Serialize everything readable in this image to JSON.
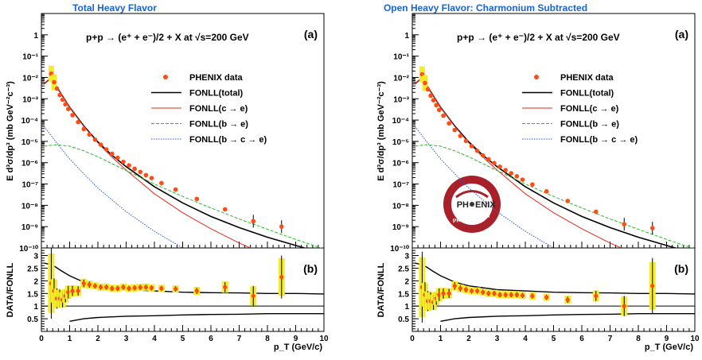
{
  "chart_data": [
    {
      "type": "scatter",
      "title": "Total Heavy Flavor",
      "process": "p+p → (e⁺ + e⁻)/2 + X at √s=200 GeV",
      "top_label": "(a)",
      "bottom_label": "(b)",
      "ylabel_top": "E d³σ/dp³ (mb GeV⁻²c⁻³)",
      "ylabel_bottom": "DATA/FONLL",
      "xlabel": "p_T (GeV/c)",
      "xlim": [
        0,
        10
      ],
      "ylim_top_log10": [
        -10,
        1
      ],
      "ylim_bottom": [
        0,
        3.3
      ],
      "log_y_top": true,
      "x_ticks": [
        "0",
        "1",
        "2",
        "3",
        "4",
        "5",
        "6",
        "7",
        "8",
        "9",
        "10"
      ],
      "y_ticks_top": [
        "10⁻¹⁰",
        "10⁻⁹",
        "10⁻⁸",
        "10⁻⁷",
        "10⁻⁶",
        "10⁻⁵",
        "10⁻⁴",
        "10⁻³",
        "10⁻²",
        "10⁻¹",
        "1"
      ],
      "y_ticks_bottom": [
        "0.5",
        "1",
        "1.5",
        "2",
        "2.5",
        "3"
      ],
      "legend": [
        {
          "label": "PHENIX data",
          "style": "marker",
          "color": "#ff4b14"
        },
        {
          "label": "FONLL(total)",
          "style": "solid",
          "color": "#000000"
        },
        {
          "label": "FONLL(c → e)",
          "style": "solid",
          "color": "#e8281c"
        },
        {
          "label": "FONLL(b → e)",
          "style": "dashed",
          "color": "#2eb82e"
        },
        {
          "label": "FONLL(b → c → e)",
          "style": "dotted",
          "color": "#2a55e0"
        }
      ],
      "series": [
        {
          "name": "PHENIX data",
          "x": [
            0.35,
            0.45,
            0.55,
            0.65,
            0.75,
            0.85,
            0.95,
            1.1,
            1.3,
            1.5,
            1.7,
            1.9,
            2.1,
            2.3,
            2.5,
            2.7,
            2.9,
            3.1,
            3.3,
            3.5,
            3.7,
            3.9,
            4.25,
            4.75,
            5.5,
            6.5,
            7.5,
            8.5
          ],
          "y": [
            0.015,
            0.006,
            0.003,
            0.0015,
            0.0009,
            0.00055,
            0.00033,
            0.00017,
            8e-05,
            3.8e-05,
            2.1e-05,
            1.2e-05,
            7e-06,
            4.2e-06,
            2.6e-06,
            1.7e-06,
            1.1e-06,
            7.5e-07,
            5.2e-07,
            3.7e-07,
            2.6e-07,
            1.9e-07,
            1.1e-07,
            5.5e-08,
            2e-08,
            6.5e-09,
            1.8e-09,
            1e-09
          ]
        },
        {
          "name": "FONLL(total)",
          "x": [
            0.1,
            0.3,
            0.5,
            0.7,
            1,
            1.5,
            2,
            2.5,
            3,
            4,
            5,
            6,
            7,
            8,
            9,
            10
          ],
          "y": [
            0.005,
            0.0085,
            0.0045,
            0.0017,
            0.0004,
            5.3e-05,
            9.5e-06,
            2.2e-06,
            6.5e-07,
            7.5e-08,
            1.3e-08,
            3e-09,
            9e-10,
            3.2e-10,
            1.3e-10,
            5.5e-11
          ]
        },
        {
          "name": "FONLL(c → e)",
          "x": [
            0.1,
            0.3,
            0.5,
            0.7,
            1,
            1.5,
            2,
            2.5,
            3,
            4,
            5,
            6,
            7,
            8,
            9,
            10
          ],
          "y": [
            0.005,
            0.0085,
            0.0045,
            0.0017,
            0.0004,
            5e-05,
            8.5e-06,
            1.8e-06,
            4.5e-07,
            3.5e-08,
            4.5e-09,
            8e-10,
            1.7e-10,
            4.5e-11,
            1.2e-11,
            4e-12
          ]
        },
        {
          "name": "FONLL(b → e)",
          "x": [
            0.1,
            0.5,
            1,
            1.5,
            2,
            2.5,
            3,
            4,
            5,
            6,
            7,
            8,
            9,
            10
          ],
          "y": [
            6e-06,
            7e-06,
            6e-06,
            3.6e-06,
            1.9e-06,
            9e-07,
            4.3e-07,
            1e-07,
            2.6e-08,
            7.5e-09,
            2.3e-09,
            7.5e-10,
            2.5e-10,
            9e-11
          ]
        },
        {
          "name": "FONLL(b → c → e)",
          "x": [
            0.1,
            0.5,
            1,
            1.5,
            2,
            3,
            4,
            5,
            6,
            7,
            8,
            9,
            10
          ],
          "y": [
            5e-05,
            1e-05,
            1.5e-06,
            3e-07,
            6.5e-08,
            5e-09,
            6e-10,
            1e-10,
            2e-11,
            4.5e-12,
            1e-12,
            2.5e-13,
            6e-14
          ]
        }
      ],
      "ratio": {
        "x": [
          0.35,
          0.45,
          0.55,
          0.65,
          0.75,
          0.85,
          0.95,
          1.1,
          1.3,
          1.5,
          1.7,
          1.9,
          2.1,
          2.3,
          2.5,
          2.7,
          2.9,
          3.1,
          3.3,
          3.5,
          3.7,
          3.9,
          4.25,
          4.75,
          5.5,
          6.5,
          7.5,
          8.5
        ],
        "y": [
          1.9,
          1.6,
          1.3,
          1.3,
          1.25,
          1.4,
          1.55,
          1.6,
          1.6,
          1.9,
          1.85,
          1.8,
          1.75,
          1.75,
          1.7,
          1.7,
          1.75,
          1.7,
          1.72,
          1.74,
          1.75,
          1.72,
          1.7,
          1.68,
          1.6,
          1.75,
          1.4,
          2.15
        ],
        "yerr": [
          1.4,
          0.5,
          0.4,
          0.35,
          0.3,
          0.25,
          0.25,
          0.2,
          0.18,
          0.15,
          0.12,
          0.1,
          0.1,
          0.1,
          0.1,
          0.1,
          0.1,
          0.1,
          0.1,
          0.1,
          0.1,
          0.1,
          0.1,
          0.1,
          0.12,
          0.2,
          0.4,
          0.85
        ],
        "upper_band": {
          "x": [
            0.1,
            0.3,
            0.5,
            0.7,
            1,
            1.5,
            2,
            3,
            4,
            5,
            6,
            7,
            8,
            9,
            10
          ],
          "y": [
            2.7,
            2.65,
            2.55,
            2.4,
            2.2,
            1.95,
            1.8,
            1.65,
            1.6,
            1.55,
            1.53,
            1.52,
            1.5,
            1.5,
            1.48
          ]
        },
        "lower_band": {
          "x": [
            1,
            1.5,
            2,
            3,
            4,
            5,
            6,
            7,
            8,
            9,
            10
          ],
          "y": [
            0.4,
            0.5,
            0.55,
            0.6,
            0.62,
            0.65,
            0.67,
            0.68,
            0.7,
            0.7,
            0.7
          ]
        },
        "reference": 1
      }
    },
    {
      "type": "scatter",
      "title": "Open Heavy Flavor: Charmonium Subtracted",
      "process": "p+p → (e⁺ + e⁻)/2 + X at √s=200 GeV",
      "top_label": "(a)",
      "bottom_label": "(b)",
      "ylabel_top": "E d³σ/dp³ (mb GeV⁻²c⁻³)",
      "ylabel_bottom": "DATA/FONLL",
      "xlabel": "p_T (GeV/c)",
      "xlim": [
        0,
        10
      ],
      "ylim_top_log10": [
        -10,
        1
      ],
      "ylim_bottom": [
        0,
        3.3
      ],
      "log_y_top": true,
      "x_ticks": [
        "0",
        "1",
        "2",
        "3",
        "4",
        "5",
        "6",
        "7",
        "8",
        "9",
        "10"
      ],
      "y_ticks_top": [
        "10⁻¹⁰",
        "10⁻⁹",
        "10⁻⁸",
        "10⁻⁷",
        "10⁻⁶",
        "10⁻⁵",
        "10⁻⁴",
        "10⁻³",
        "10⁻²",
        "10⁻¹",
        "1"
      ],
      "y_ticks_bottom": [
        "0.5",
        "1",
        "1.5",
        "2",
        "2.5",
        "3"
      ],
      "watermark": {
        "top_text": "PH",
        "middle_text": "ENIX",
        "bottom_text": "PRELIMINARY",
        "color": "#a8202a"
      },
      "legend": [
        {
          "label": "PHENIX data",
          "style": "marker",
          "color": "#ff4b14"
        },
        {
          "label": "FONLL(total)",
          "style": "solid",
          "color": "#000000"
        },
        {
          "label": "FONLL(c → e)",
          "style": "solid",
          "color": "#e8281c"
        },
        {
          "label": "FONLL(b → e)",
          "style": "dashed",
          "color": "#2eb82e"
        },
        {
          "label": "FONLL(b → c → e)",
          "style": "dotted",
          "color": "#2a55e0"
        }
      ],
      "series": [
        {
          "name": "PHENIX data",
          "x": [
            0.35,
            0.45,
            0.55,
            0.65,
            0.75,
            0.85,
            0.95,
            1.1,
            1.3,
            1.5,
            1.7,
            1.9,
            2.1,
            2.3,
            2.5,
            2.7,
            2.9,
            3.1,
            3.3,
            3.5,
            3.7,
            3.9,
            4.25,
            4.75,
            5.5,
            6.5,
            7.5,
            8.5
          ],
          "y": [
            0.014,
            0.0055,
            0.0028,
            0.0014,
            0.00085,
            0.0005,
            0.0003,
            0.00016,
            7e-05,
            3.4e-05,
            1.8e-05,
            1.05e-05,
            6e-06,
            3.6e-06,
            2.2e-06,
            1.45e-06,
            9.5e-07,
            6.5e-07,
            4.5e-07,
            3.2e-07,
            2.3e-07,
            1.6e-07,
            9.5e-08,
            4.5e-08,
            1.6e-08,
            5e-09,
            1.3e-09,
            8.5e-10
          ]
        },
        {
          "name": "FONLL(total)",
          "x": [
            0.1,
            0.3,
            0.5,
            0.7,
            1,
            1.5,
            2,
            2.5,
            3,
            4,
            5,
            6,
            7,
            8,
            9,
            10
          ],
          "y": [
            0.005,
            0.0085,
            0.0045,
            0.0017,
            0.0004,
            5.3e-05,
            9.5e-06,
            2.2e-06,
            6.5e-07,
            7.5e-08,
            1.3e-08,
            3e-09,
            9e-10,
            3.2e-10,
            1.3e-10,
            5.5e-11
          ]
        },
        {
          "name": "FONLL(c → e)",
          "x": [
            0.1,
            0.3,
            0.5,
            0.7,
            1,
            1.5,
            2,
            2.5,
            3,
            4,
            5,
            6,
            7,
            8,
            9,
            10
          ],
          "y": [
            0.005,
            0.0085,
            0.0045,
            0.0017,
            0.0004,
            5e-05,
            8.5e-06,
            1.8e-06,
            4.5e-07,
            3.5e-08,
            4.5e-09,
            8e-10,
            1.7e-10,
            4.5e-11,
            1.2e-11,
            4e-12
          ]
        },
        {
          "name": "FONLL(b → e)",
          "x": [
            0.1,
            0.5,
            1,
            1.5,
            2,
            2.5,
            3,
            4,
            5,
            6,
            7,
            8,
            9,
            10
          ],
          "y": [
            6e-06,
            7e-06,
            6e-06,
            3.6e-06,
            1.9e-06,
            9e-07,
            4.3e-07,
            1e-07,
            2.6e-08,
            7.5e-09,
            2.3e-09,
            7.5e-10,
            2.5e-10,
            9e-11
          ]
        },
        {
          "name": "FONLL(b → c → e)",
          "x": [
            0.1,
            0.5,
            1,
            1.5,
            2,
            3,
            4,
            5,
            6,
            7,
            8,
            9,
            10
          ],
          "y": [
            5e-05,
            1e-05,
            1.5e-06,
            3e-07,
            6.5e-08,
            5e-09,
            6e-10,
            1e-10,
            2e-11,
            4.5e-12,
            1e-12,
            2.5e-13,
            6e-14
          ]
        }
      ],
      "ratio": {
        "x": [
          0.35,
          0.45,
          0.55,
          0.65,
          0.75,
          0.85,
          0.95,
          1.1,
          1.3,
          1.5,
          1.7,
          1.9,
          2.1,
          2.3,
          2.5,
          2.7,
          2.9,
          3.1,
          3.3,
          3.5,
          3.7,
          3.9,
          4.25,
          4.75,
          5.5,
          6.5,
          7.5,
          8.5
        ],
        "y": [
          1.75,
          1.45,
          1.2,
          1.2,
          1.15,
          1.3,
          1.45,
          1.5,
          1.5,
          1.8,
          1.7,
          1.65,
          1.6,
          1.6,
          1.55,
          1.5,
          1.5,
          1.45,
          1.45,
          1.45,
          1.45,
          1.42,
          1.4,
          1.35,
          1.25,
          1.4,
          1.0,
          1.8
        ],
        "yerr": [
          1.4,
          0.5,
          0.4,
          0.35,
          0.3,
          0.25,
          0.25,
          0.2,
          0.18,
          0.15,
          0.12,
          0.1,
          0.1,
          0.1,
          0.1,
          0.1,
          0.1,
          0.1,
          0.1,
          0.1,
          0.1,
          0.1,
          0.1,
          0.1,
          0.12,
          0.2,
          0.4,
          1.1
        ],
        "upper_band": {
          "x": [
            0.1,
            0.3,
            0.5,
            0.7,
            1,
            1.5,
            2,
            3,
            4,
            5,
            6,
            7,
            8,
            9,
            10
          ],
          "y": [
            2.7,
            2.65,
            2.55,
            2.4,
            2.2,
            1.95,
            1.8,
            1.65,
            1.6,
            1.55,
            1.53,
            1.52,
            1.5,
            1.5,
            1.48
          ]
        },
        "lower_band": {
          "x": [
            1,
            1.5,
            2,
            3,
            4,
            5,
            6,
            7,
            8,
            9,
            10
          ],
          "y": [
            0.4,
            0.5,
            0.55,
            0.6,
            0.62,
            0.65,
            0.67,
            0.68,
            0.7,
            0.7,
            0.7
          ]
        },
        "reference": 1
      }
    }
  ]
}
